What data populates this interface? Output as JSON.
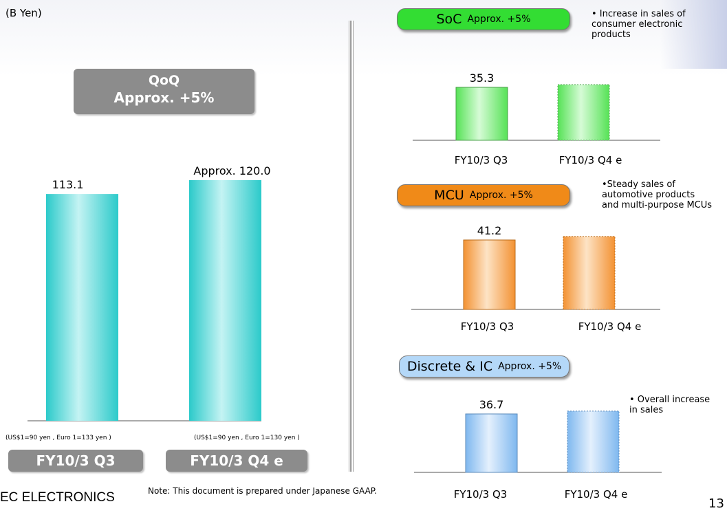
{
  "unit_label": "(B Yen)",
  "qoq_box": {
    "line1": "QoQ",
    "line2": "Approx. +5%"
  },
  "fx_notes": [
    "(US$1=90 yen , Euro 1=133 yen )",
    "(US$1=90 yen , Euro 1=130 yen )"
  ],
  "period_labels": [
    "FY10/3 Q3",
    "FY10/3 Q4 e"
  ],
  "segments": [
    {
      "name": "SoC",
      "change": "Approx. +5%",
      "note_lines": [
        "• Increase in sales of",
        "consumer electronic",
        "products"
      ],
      "color": "#33dd33"
    },
    {
      "name": "MCU",
      "change": "Approx. +5%",
      "note_lines": [
        "•Steady sales of",
        "automotive products",
        "and multi-purpose MCUs"
      ],
      "color": "#f08a18"
    },
    {
      "name": "Discrete & IC",
      "change": "Approx. +5%",
      "note_lines": [
        "• Overall increase",
        "in  sales"
      ],
      "color": "#b4d8f8"
    }
  ],
  "footer": {
    "note": "Note: This document is prepared under Japanese GAAP.",
    "logo": "EC ELECTRONICS",
    "page": "13"
  },
  "colors": {
    "total_bar": "#3fcfcf",
    "soc_bar": "#6ee86e",
    "mcu_bar": "#f3a040",
    "disc_bar": "#8cbff0",
    "grey_box": "#8c8c8c"
  },
  "chart_data": [
    {
      "type": "bar",
      "categories": [
        "FY10/3 Q3",
        "FY10/3 Q4 e"
      ],
      "values": [
        113.1,
        120.0
      ],
      "data_labels": [
        "113.1",
        "Approx. 120.0"
      ],
      "ylim": [
        0,
        120.0
      ]
    },
    {
      "type": "bar",
      "title": "SoC",
      "categories": [
        "FY10/3 Q3",
        "FY10/3 Q4 e"
      ],
      "values": [
        35.3,
        37.1
      ],
      "data_labels": [
        "35.3",
        ""
      ]
    },
    {
      "type": "bar",
      "title": "MCU",
      "categories": [
        "FY10/3 Q3",
        "FY10/3 Q4 e"
      ],
      "values": [
        41.2,
        43.3
      ],
      "data_labels": [
        "41.2",
        ""
      ]
    },
    {
      "type": "bar",
      "title": "Discrete & IC",
      "categories": [
        "FY10/3 Q3",
        "FY10/3 Q4 e"
      ],
      "values": [
        36.7,
        38.5
      ],
      "data_labels": [
        "36.7",
        ""
      ]
    }
  ]
}
